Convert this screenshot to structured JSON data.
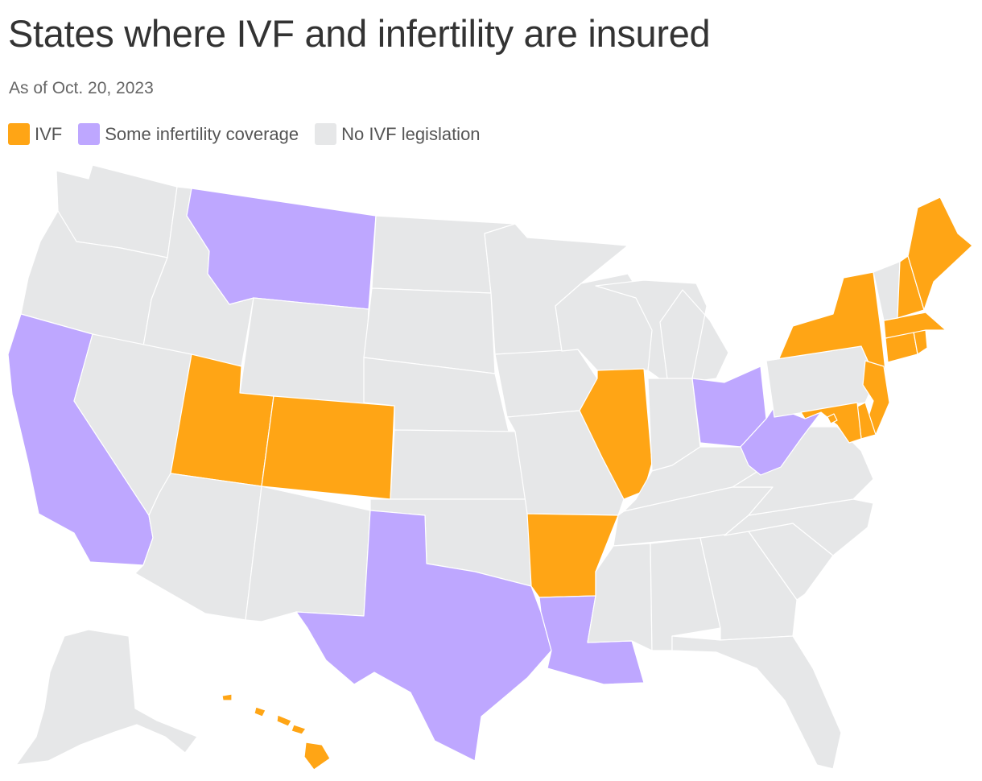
{
  "title": "States where IVF and infertility are insured",
  "subtitle": "As of Oct. 20, 2023",
  "legend": [
    {
      "label": "IVF",
      "category": "ivf",
      "color": "#ffa515"
    },
    {
      "label": "Some infertility coverage",
      "category": "some",
      "color": "#bea7ff"
    },
    {
      "label": "No IVF legislation",
      "category": "none",
      "color": "#e6e7e8"
    }
  ],
  "colors": {
    "ivf": "#ffa515",
    "some": "#bea7ff",
    "none": "#e6e7e8"
  },
  "states": {
    "ivf": [
      "UT",
      "CO",
      "AR",
      "IL",
      "NY",
      "NJ",
      "DE",
      "MD",
      "CT",
      "RI",
      "MA",
      "NH",
      "ME",
      "HI",
      "DC"
    ],
    "some": [
      "CA",
      "MT",
      "TX",
      "LA",
      "OH",
      "WV"
    ],
    "none": [
      "WA",
      "OR",
      "ID",
      "NV",
      "AZ",
      "NM",
      "WY",
      "ND",
      "SD",
      "NE",
      "KS",
      "OK",
      "MN",
      "IA",
      "MO",
      "WI",
      "MI",
      "IN",
      "KY",
      "TN",
      "MS",
      "AL",
      "GA",
      "FL",
      "SC",
      "NC",
      "VA",
      "PA",
      "VT",
      "AK"
    ]
  }
}
